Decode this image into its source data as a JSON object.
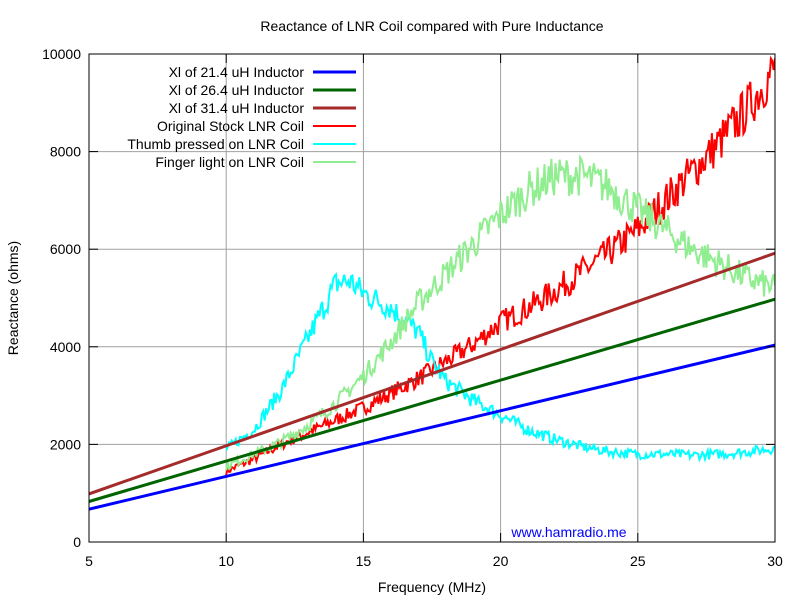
{
  "chart_data": {
    "type": "line",
    "title": "Reactance of LNR Coil compared with Pure Inductance",
    "xlabel": "Frequency (MHz)",
    "ylabel": "Reactance (ohms)",
    "xlim": [
      5,
      30
    ],
    "ylim": [
      0,
      10000
    ],
    "xticks": [
      5,
      10,
      15,
      20,
      25,
      30
    ],
    "yticks": [
      0,
      2000,
      4000,
      6000,
      8000,
      10000
    ],
    "grid": true,
    "legend_position": "top-left",
    "annotation": "www.hamradio.me",
    "annotation_color": "#0000ff",
    "series": [
      {
        "name": "Xl of 21.4 uH Inductor",
        "color": "#0000ff",
        "kind": "line",
        "x": [
          5,
          30
        ],
        "y": [
          672,
          4034
        ]
      },
      {
        "name": "Xl of 26.4 uH Inductor",
        "color": "#006400",
        "kind": "line",
        "x": [
          5,
          30
        ],
        "y": [
          829,
          4976
        ]
      },
      {
        "name": "Xl of 31.4 uH Inductor",
        "color": "#a52a2a",
        "kind": "line",
        "x": [
          5,
          30
        ],
        "y": [
          986,
          5918
        ]
      },
      {
        "name": "Original Stock LNR Coil",
        "color": "#ff0000",
        "kind": "measured",
        "x": [
          10,
          11,
          12,
          13,
          14,
          15,
          16,
          17,
          18,
          19,
          20,
          21,
          22,
          23,
          24,
          25,
          26,
          27,
          28,
          29,
          30
        ],
        "y": [
          1450,
          1700,
          2000,
          2250,
          2500,
          2750,
          3050,
          3350,
          3700,
          4050,
          4500,
          4800,
          5150,
          5550,
          5950,
          6400,
          7000,
          7600,
          8200,
          8900,
          9700
        ]
      },
      {
        "name": "Thumb pressed on LNR Coil",
        "color": "#00ffff",
        "kind": "measured",
        "x": [
          10,
          11,
          12,
          13,
          14,
          14.5,
          15,
          16,
          17,
          17.5,
          18,
          19,
          20,
          21,
          22,
          23,
          24,
          25,
          26,
          27,
          28,
          29,
          30
        ],
        "y": [
          1900,
          2300,
          3100,
          4200,
          5300,
          5350,
          5100,
          4800,
          4300,
          3700,
          3300,
          2900,
          2600,
          2300,
          2100,
          1950,
          1850,
          1800,
          1800,
          1780,
          1800,
          1850,
          1920
        ]
      },
      {
        "name": "Finger light on LNR Coil",
        "color": "#90ee90",
        "kind": "measured",
        "x": [
          10,
          11,
          12,
          13,
          14,
          15,
          16,
          17,
          18,
          19,
          20,
          21,
          22,
          23,
          24,
          25,
          26,
          27,
          28,
          29,
          30
        ],
        "y": [
          1550,
          1800,
          2050,
          2400,
          2850,
          3400,
          4100,
          4900,
          5500,
          6100,
          6700,
          7200,
          7500,
          7500,
          7250,
          6800,
          6400,
          6000,
          5700,
          5400,
          5200
        ]
      }
    ]
  }
}
